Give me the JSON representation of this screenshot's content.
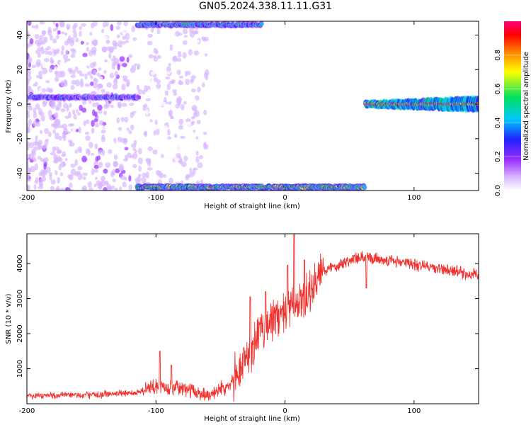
{
  "title": "GN05.2024.338.11.11.G31",
  "colors": {
    "snr_line": "#f0302c",
    "colormap": [
      "#ffffff",
      "#d9b8ff",
      "#9b30ff",
      "#2020ff",
      "#00c8ff",
      "#00e060",
      "#ffff00",
      "#ff8000",
      "#ff0000",
      "#ff0080"
    ]
  },
  "chart_data": [
    {
      "id": "spectrogram",
      "type": "heatmap",
      "xlabel": "Height of straight line (km)",
      "ylabel": "Frequency (Hz)",
      "xlim": [
        -200,
        150
      ],
      "ylim": [
        -50,
        48
      ],
      "x_ticks": [
        -200,
        -100,
        0,
        100
      ],
      "y_ticks": [
        -40,
        -20,
        0,
        20,
        40
      ],
      "colorbar": {
        "label": "Normalized spectral amplitude",
        "range": [
          0.0,
          1.0
        ],
        "ticks": [
          0.0,
          0.2,
          0.4,
          0.6,
          0.8
        ]
      },
      "features": [
        {
          "name": "noisy-scatter",
          "x_range": [
            -200,
            -60
          ],
          "y_range": [
            -50,
            48
          ],
          "amplitude": 0.15
        },
        {
          "name": "left-band",
          "x_range": [
            -200,
            -113
          ],
          "freq": 4,
          "amplitude": 0.35
        },
        {
          "name": "top-alias-band",
          "x_range": [
            -115,
            -18
          ],
          "freq": 46,
          "amplitude": 0.45
        },
        {
          "name": "bottom-alias-band",
          "x_range": [
            -115,
            62
          ],
          "freq": -48,
          "amplitude": 0.6
        },
        {
          "name": "right-band",
          "x_range": [
            62,
            150
          ],
          "freq": 0,
          "amplitude": 0.9
        }
      ]
    },
    {
      "id": "snr",
      "type": "line",
      "xlabel": "Height of straight line (km)",
      "ylabel": "SNR (10 * v/v)",
      "xlim": [
        -200,
        150
      ],
      "ylim": [
        0,
        4850
      ],
      "x_ticks": [
        -200,
        -100,
        0,
        100
      ],
      "y_ticks": [
        1000,
        2000,
        3000,
        4000
      ],
      "envelope": {
        "x": [
          -200,
          -150,
          -115,
          -100,
          -80,
          -60,
          -45,
          -35,
          -25,
          -20,
          -10,
          0,
          10,
          20,
          30,
          50,
          60,
          70,
          80,
          100,
          120,
          150
        ],
        "y": [
          230,
          250,
          320,
          500,
          440,
          250,
          500,
          1000,
          1600,
          2000,
          2400,
          2600,
          2800,
          3200,
          3800,
          4100,
          4150,
          4150,
          4100,
          3980,
          3850,
          3650
        ]
      },
      "spikes": [
        {
          "x": -97,
          "y": 1500
        },
        {
          "x": -88,
          "y": 1100
        },
        {
          "x": -32,
          "y": 1600
        },
        {
          "x": -27,
          "y": 3050
        },
        {
          "x": -15,
          "y": 3200
        },
        {
          "x": 2,
          "y": 3950
        },
        {
          "x": 7,
          "y": 4850
        },
        {
          "x": 15,
          "y": 4100
        },
        {
          "x": 63,
          "y": 4550
        },
        {
          "x": 63,
          "y": 3300
        }
      ]
    }
  ]
}
